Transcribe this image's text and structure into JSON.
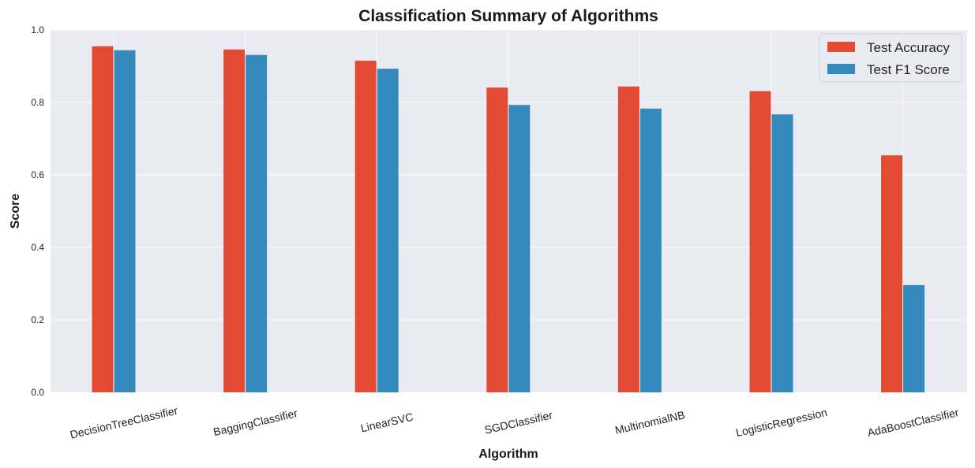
{
  "chart_data": {
    "type": "bar",
    "title": "Classification Summary of Algorithms",
    "xlabel": "Algorithm",
    "ylabel": "Score",
    "categories": [
      "DecisionTreeClassifier",
      "BaggingClassifier",
      "LinearSVC",
      "SGDClassifier",
      "MultinomialNB",
      "LogisticRegression",
      "AdaBoostClassifier"
    ],
    "series": [
      {
        "name": "Test Accuracy",
        "color": "#e24a33",
        "values": [
          0.955,
          0.946,
          0.915,
          0.841,
          0.844,
          0.831,
          0.654
        ]
      },
      {
        "name": "Test F1 Score",
        "color": "#348abd",
        "values": [
          0.944,
          0.931,
          0.893,
          0.793,
          0.783,
          0.767,
          0.296
        ]
      }
    ],
    "ylim": [
      0,
      1.0
    ],
    "yticks": [
      "0.0",
      "0.2",
      "0.4",
      "0.6",
      "0.8",
      "1.0"
    ],
    "grid": true,
    "legend_position": "top-right",
    "background": "#eaeaf2"
  }
}
